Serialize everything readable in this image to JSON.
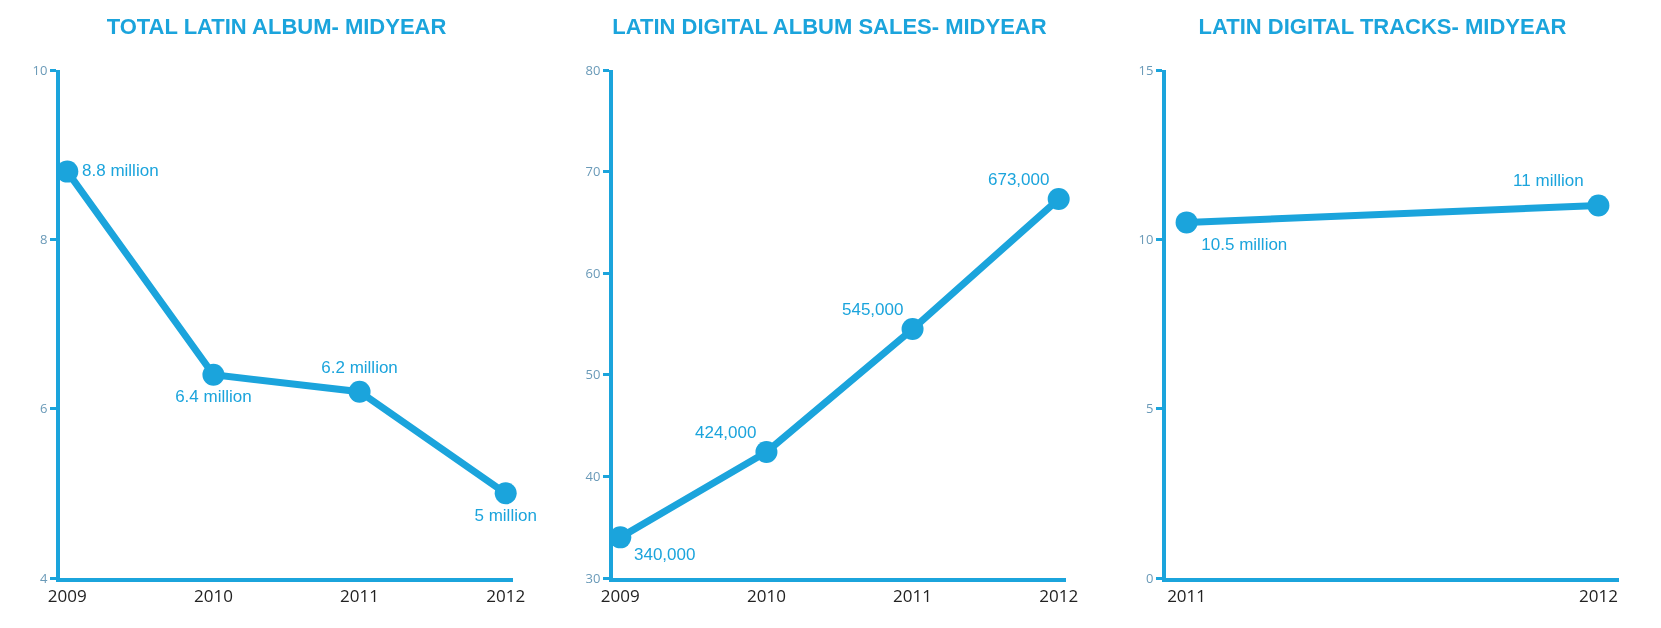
{
  "chart_data": [
    {
      "type": "line",
      "title": "TOTAL LATIN ALBUM- MIDYEAR",
      "categories": [
        "2009",
        "2010",
        "2011",
        "2012"
      ],
      "series": [
        {
          "color": "#1ba4dc",
          "values": [
            8.8,
            6.4,
            6.2,
            5
          ],
          "value_labels": [
            "8.8 million",
            "6.4 million",
            "6.2 million",
            "5 million"
          ]
        }
      ],
      "ylim": [
        4,
        10
      ],
      "yticks": [
        4,
        6,
        8,
        10
      ],
      "grid": false,
      "marker": "circle",
      "line_style": "solid"
    },
    {
      "type": "line",
      "title": "LATIN DIGITAL ALBUM SALES- MIDYEAR",
      "categories": [
        "2009",
        "2010",
        "2011",
        "2012"
      ],
      "series": [
        {
          "color": "#1ba4dc",
          "values": [
            34,
            42.4,
            54.5,
            67.3
          ]
        }
      ],
      "annotations": [
        {
          "text": "340,000",
          "x": "2009",
          "y": 34
        },
        {
          "text": "424,000",
          "x": "2010",
          "y": 42.4
        },
        {
          "text": "545,000",
          "x": "2011",
          "y": 54.5
        },
        {
          "text": "673,000",
          "x": "2012",
          "y": 67.3
        }
      ],
      "ylim": [
        30,
        80
      ],
      "yticks": [
        30,
        40,
        50,
        60,
        70,
        80
      ],
      "grid": false,
      "marker": "circle",
      "line_style": "solid"
    },
    {
      "type": "line",
      "title": "LATIN DIGITAL TRACKS- MIDYEAR",
      "categories": [
        "2011",
        "2012"
      ],
      "series": [
        {
          "color": "#1ba4dc",
          "values": [
            10.5,
            11
          ],
          "value_labels": [
            "10.5 million",
            "11 million"
          ]
        }
      ],
      "ylim": [
        0,
        15
      ],
      "yticks": [
        0,
        5,
        10,
        15
      ],
      "grid": false,
      "marker": "circle",
      "line_style": "solid"
    }
  ]
}
